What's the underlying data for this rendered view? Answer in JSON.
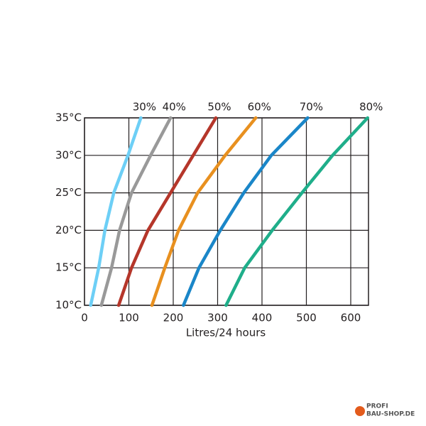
{
  "chart_data": {
    "type": "line",
    "x_label": "Litres/24 hours",
    "xlim": [
      0,
      640
    ],
    "xticks": [
      0,
      100,
      200,
      300,
      400,
      500,
      600
    ],
    "ylim": [
      10,
      35
    ],
    "yticks": [
      {
        "value": 10,
        "label": "10°C"
      },
      {
        "value": 15,
        "label": "15°C"
      },
      {
        "value": 20,
        "label": "20°C"
      },
      {
        "value": 25,
        "label": "25°C"
      },
      {
        "value": 30,
        "label": "30°C"
      },
      {
        "value": 35,
        "label": "35°C"
      }
    ],
    "grid": true,
    "series": [
      {
        "name": "30%",
        "color": "#6dcff6",
        "x": [
          14,
          32,
          46,
          66,
          98,
          127
        ],
        "values": [
          10,
          15,
          20,
          25,
          30,
          35
        ]
      },
      {
        "name": "40%",
        "color": "#999999",
        "x": [
          38,
          61,
          79,
          106,
          149,
          194
        ],
        "values": [
          10,
          15,
          20,
          25,
          30,
          35
        ]
      },
      {
        "name": "50%",
        "color": "#b5362a",
        "x": [
          77,
          106,
          143,
          194,
          245,
          296
        ],
        "values": [
          10,
          15,
          20,
          25,
          30,
          35
        ]
      },
      {
        "name": "60%",
        "color": "#e8901f",
        "x": [
          152,
          181,
          212,
          255,
          317,
          386
        ],
        "values": [
          10,
          15,
          20,
          25,
          30,
          35
        ]
      },
      {
        "name": "70%",
        "color": "#1a86c8",
        "x": [
          223,
          258,
          306,
          359,
          421,
          503
        ],
        "values": [
          10,
          15,
          20,
          25,
          30,
          35
        ]
      },
      {
        "name": "80%",
        "color": "#1fae8a",
        "x": [
          319,
          361,
          423,
          490,
          559,
          638
        ],
        "values": [
          10,
          15,
          20,
          25,
          30,
          35
        ]
      }
    ]
  },
  "watermark": {
    "line1": "PROFI",
    "line2": "BAU-SHOP.DE"
  }
}
